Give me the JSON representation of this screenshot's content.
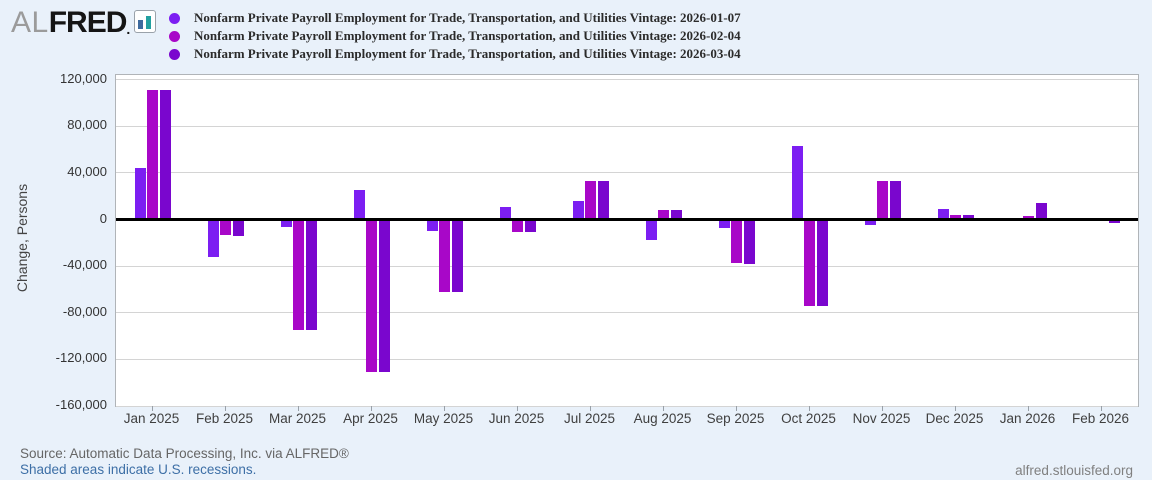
{
  "logo": {
    "prefix": "AL",
    "name": "FRED",
    "registered_mark": ".",
    "icon": "bar-chart-icon"
  },
  "ylabel": "Change, Persons",
  "footer": {
    "source": "Source: Automatic Data Processing, Inc. via ALFRED®",
    "recession_note": "Shaded areas indicate U.S. recessions.",
    "site": "alfred.stlouisfed.org"
  },
  "chart_data": {
    "type": "bar",
    "title": "",
    "ylabel": "Change, Persons",
    "ylim": [
      -160000,
      124000
    ],
    "grid": true,
    "legend_position": "top",
    "yticks": [
      {
        "v": 120000,
        "label": "120,000"
      },
      {
        "v": 80000,
        "label": "80,000"
      },
      {
        "v": 40000,
        "label": "40,000"
      },
      {
        "v": 0,
        "label": "0"
      },
      {
        "v": -40000,
        "label": "-40,000"
      },
      {
        "v": -80000,
        "label": "-80,000"
      },
      {
        "v": -120000,
        "label": "-120,000"
      },
      {
        "v": -160000,
        "label": "-160,000"
      }
    ],
    "categories": [
      "Jan 2025",
      "Feb 2025",
      "Mar 2025",
      "Apr 2025",
      "May 2025",
      "Jun 2025",
      "Jul 2025",
      "Aug 2025",
      "Sep 2025",
      "Oct 2025",
      "Nov 2025",
      "Dec 2025",
      "Jan 2026",
      "Feb 2026"
    ],
    "series": [
      {
        "name": "Nonfarm Private Payroll Employment for Trade, Transportation, and Utilities Vintage: 2026-01-07",
        "color": "#7c1ef2",
        "values": [
          44000,
          -32000,
          -6000,
          25000,
          -10000,
          11000,
          16000,
          -18000,
          -7000,
          63000,
          -5000,
          9000,
          null,
          null
        ]
      },
      {
        "name": "Nonfarm Private Payroll Employment for Trade, Transportation, and Utilities Vintage: 2026-02-04",
        "color": "#a807c8",
        "values": [
          111000,
          -13000,
          -95000,
          -131000,
          -62000,
          -11000,
          33000,
          8000,
          -37000,
          -74000,
          33000,
          4000,
          3000,
          null
        ]
      },
      {
        "name": "Nonfarm Private Payroll Employment for Trade, Transportation, and Utilities Vintage: 2026-03-04",
        "color": "#7a06ce",
        "values": [
          111000,
          -14000,
          -95000,
          -131000,
          -62000,
          -11000,
          33000,
          8000,
          -38000,
          -74000,
          33000,
          4000,
          14000,
          -3000
        ]
      }
    ]
  }
}
